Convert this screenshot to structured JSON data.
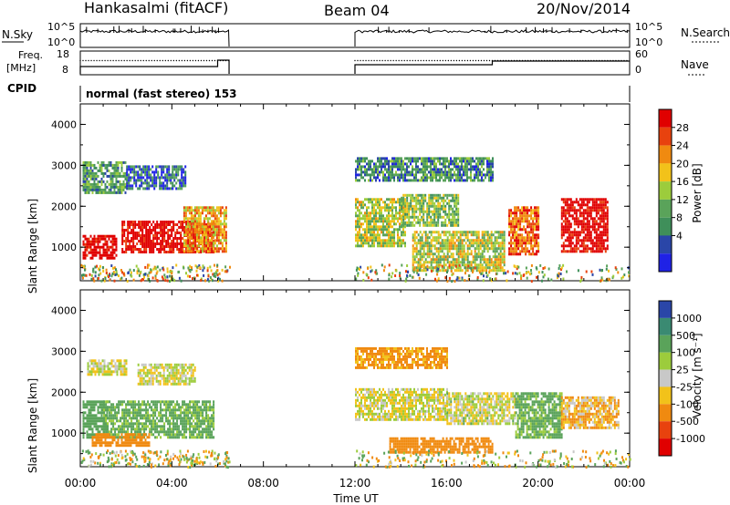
{
  "header": {
    "station": "Hankasalmi (fitACF)",
    "beam": "Beam 04",
    "date": "20/Nov/2014"
  },
  "param_panels": {
    "nsky_label": "N.Sky",
    "nsearch_label": "N.Search",
    "nsky_ticks": [
      "10^5",
      "10^0"
    ],
    "freq_label_top": "Freq.",
    "freq_label_bottom": "[MHz]",
    "freq_ticks": [
      "18",
      "8"
    ],
    "nave_label": "Nave",
    "nave_ticks": [
      "60",
      "0"
    ],
    "cpid_label": "CPID",
    "mode_text": "normal (fast stereo) 153"
  },
  "colors": {
    "power": [
      "#1f22e6",
      "#2a46a8",
      "#3f8f5a",
      "#5aa35a",
      "#9ccc3c",
      "#f2c21a",
      "#f08a10",
      "#e8420e",
      "#e00000"
    ],
    "velocity": [
      "#e00000",
      "#e8420e",
      "#f08a10",
      "#f2c21a",
      "#c8c8c8",
      "#9ccc3c",
      "#5aa35a",
      "#3a8a72",
      "#2a46a8"
    ]
  },
  "chart_data": [
    {
      "type": "heatmap",
      "name": "power",
      "xlabel": "",
      "ylabel": "Slant Range [km]",
      "colorbar_label": "Power [dB]",
      "colorbar_ticks": [
        "28",
        "24",
        "20",
        "16",
        "12",
        "8",
        "4"
      ],
      "yticks": [
        "4000",
        "3000",
        "2000",
        "1000"
      ],
      "xlim": [
        0,
        24
      ],
      "ylim": [
        180,
        4500
      ],
      "data_windows_ut": [
        [
          0,
          6.5
        ],
        [
          12,
          24
        ]
      ],
      "regions": [
        {
          "t": [
            0.1,
            1.6
          ],
          "r": [
            700,
            1300
          ],
          "v": 28
        },
        {
          "t": [
            1.8,
            5.8
          ],
          "r": [
            850,
            1650
          ],
          "v": 27
        },
        {
          "t": [
            4.5,
            6.4
          ],
          "r": [
            900,
            2000
          ],
          "v": 18
        },
        {
          "t": [
            0.1,
            2.0
          ],
          "r": [
            2300,
            3100
          ],
          "v": 9
        },
        {
          "t": [
            2.0,
            4.6
          ],
          "r": [
            2400,
            3000
          ],
          "v": 6
        },
        {
          "t": [
            12.0,
            14.2
          ],
          "r": [
            1000,
            2200
          ],
          "v": 14
        },
        {
          "t": [
            14.0,
            16.5
          ],
          "r": [
            1500,
            2300
          ],
          "v": 12
        },
        {
          "t": [
            14.5,
            18.5
          ],
          "r": [
            400,
            1400
          ],
          "v": 14
        },
        {
          "t": [
            18.7,
            20.0
          ],
          "r": [
            800,
            2000
          ],
          "v": 22
        },
        {
          "t": [
            21.0,
            23.0
          ],
          "r": [
            900,
            2200
          ],
          "v": 27
        },
        {
          "t": [
            12.0,
            18.0
          ],
          "r": [
            2600,
            3200
          ],
          "v": 8
        }
      ]
    },
    {
      "type": "heatmap",
      "name": "velocity",
      "xlabel": "Time UT",
      "ylabel": "Slant Range [km]",
      "colorbar_label": "Velocity [m s⁻¹]",
      "colorbar_ticks": [
        "1000",
        "500",
        "100",
        "25",
        "-25",
        "-100",
        "-500",
        "-1000"
      ],
      "yticks": [
        "4000",
        "3000",
        "2000",
        "1000"
      ],
      "xticks": [
        "00:00",
        "04:00",
        "08:00",
        "12:00",
        "16:00",
        "20:00",
        "00:00"
      ],
      "xlim": [
        0,
        24
      ],
      "ylim": [
        180,
        4500
      ],
      "data_windows_ut": [
        [
          0,
          6.5
        ],
        [
          12,
          24
        ]
      ],
      "regions": [
        {
          "t": [
            0.1,
            1.2
          ],
          "r": [
            900,
            1800
          ],
          "v": 200
        },
        {
          "t": [
            1.0,
            5.8
          ],
          "r": [
            900,
            1800
          ],
          "v": 150
        },
        {
          "t": [
            0.3,
            2.0
          ],
          "r": [
            2400,
            2800
          ],
          "v": 0
        },
        {
          "t": [
            2.5,
            5.0
          ],
          "r": [
            2200,
            2700
          ],
          "v": 0
        },
        {
          "t": [
            0.5,
            3.0
          ],
          "r": [
            700,
            1000
          ],
          "v": -300
        },
        {
          "t": [
            12.0,
            16.0
          ],
          "r": [
            1300,
            2100
          ],
          "v": 0
        },
        {
          "t": [
            13.5,
            18.0
          ],
          "r": [
            500,
            900
          ],
          "v": -200
        },
        {
          "t": [
            16.0,
            19.0
          ],
          "r": [
            1200,
            2000
          ],
          "v": 10
        },
        {
          "t": [
            19.0,
            21.0
          ],
          "r": [
            900,
            2000
          ],
          "v": 150
        },
        {
          "t": [
            21.0,
            23.5
          ],
          "r": [
            1100,
            1900
          ],
          "v": -80
        },
        {
          "t": [
            12.0,
            16.0
          ],
          "r": [
            2600,
            3100
          ],
          "v": -150
        }
      ]
    }
  ]
}
